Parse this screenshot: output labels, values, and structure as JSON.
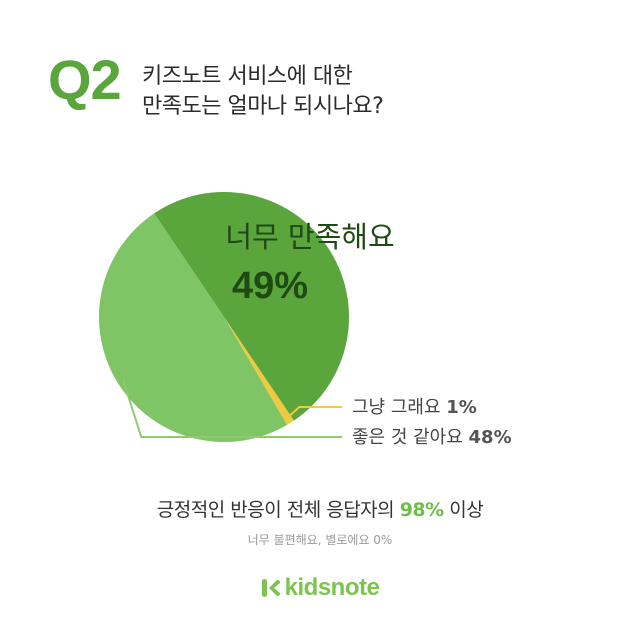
{
  "header": {
    "q_label": "Q2",
    "title_line1": "키즈노트 서비스에 대한",
    "title_line2": "만족도는 얼마나 되시나요?"
  },
  "chart_data": {
    "type": "pie",
    "slices": [
      {
        "label": "너무 만족해요",
        "value": 49,
        "value_label": "49%",
        "color": "#5aa63c"
      },
      {
        "label": "그냥 그래요",
        "value": 1,
        "value_label": "1%",
        "color": "#f0c93e"
      },
      {
        "label": "좋은 것 같아요",
        "value": 48,
        "value_label": "48%",
        "color": "#7fc465"
      }
    ]
  },
  "summary": {
    "prefix": "긍정적인 반응이 전체 응답자의",
    "highlight": "98%",
    "suffix": "이상"
  },
  "footnote": "너무 불편해요, 별로에요 0%",
  "brand": {
    "name": "kidsnote",
    "color": "#7cc44d"
  }
}
